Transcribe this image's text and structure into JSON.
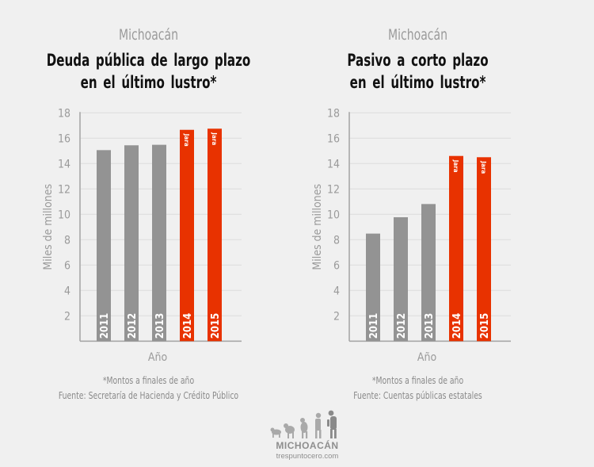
{
  "colors": {
    "background": "#f0f0f0",
    "bar_default": "#939393",
    "bar_highlight": "#e83200",
    "grid": "#dcdcdc",
    "axis": "#a8a8a8",
    "tick_text": "#9a9a9a"
  },
  "chart_data": [
    {
      "type": "bar",
      "region": "Michoacán",
      "title": "Deuda pública de largo plazo en el último lustro*",
      "title_lines": [
        "Deuda pública de largo plazo",
        "en el último lustro*"
      ],
      "xlabel": "Año",
      "ylabel": "Miles de millones",
      "ylim": [
        0,
        18
      ],
      "yticks": [
        2,
        4,
        6,
        8,
        10,
        12,
        14,
        16,
        18
      ],
      "grid": true,
      "categories": [
        "2011",
        "2012",
        "2013",
        "2014",
        "2015"
      ],
      "values": [
        15.06,
        15.44,
        15.48,
        16.66,
        16.75
      ],
      "highlight": [
        false,
        false,
        false,
        true,
        true
      ],
      "annotations": [
        "",
        "",
        "",
        "Jara",
        "Jara"
      ],
      "footnote": "*Montos a finales de año",
      "source": "Fuente: Secretaría de Hacienda y Crédito Público"
    },
    {
      "type": "bar",
      "region": "Michoacán",
      "title": "Pasivo a corto plazo en el último lustro*",
      "title_lines": [
        "Pasivo a corto plazo",
        "en el último lustro*"
      ],
      "xlabel": "Año",
      "ylabel": "Miles de millones",
      "ylim": [
        0,
        18
      ],
      "yticks": [
        2,
        4,
        6,
        8,
        10,
        12,
        14,
        16,
        18
      ],
      "grid": true,
      "categories": [
        "2011",
        "2012",
        "2013",
        "2014",
        "2015"
      ],
      "values": [
        8.48,
        9.77,
        10.81,
        14.6,
        14.5
      ],
      "highlight": [
        false,
        false,
        false,
        true,
        true
      ],
      "annotations": [
        "",
        "",
        "",
        "Jara",
        "Jara"
      ],
      "footnote": "*Montos a finales de año",
      "source": "Fuente: Cuentas públicas estatales"
    }
  ],
  "logo": {
    "wordmark": "MICHOACÁN",
    "url_text": "trespuntocero.com",
    "icon": "evolution-icon"
  }
}
